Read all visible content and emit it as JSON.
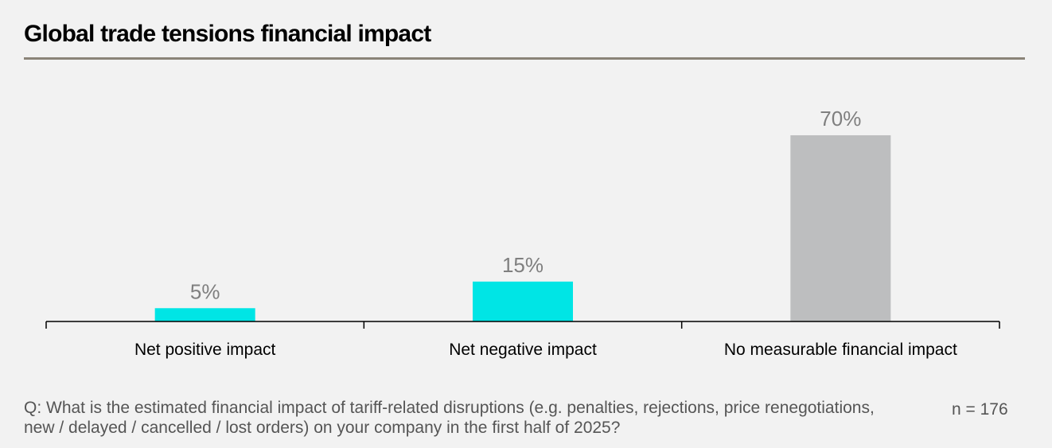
{
  "title": "Global trade tensions financial impact",
  "chart_data": {
    "type": "bar",
    "categories": [
      "Net positive impact",
      "Net negative impact",
      "No measurable financial impact"
    ],
    "values": [
      5,
      15,
      70
    ],
    "value_labels": [
      "5%",
      "15%",
      "70%"
    ],
    "colors": [
      "#00e5e5",
      "#00e5e5",
      "#bdbebf"
    ],
    "ylim": [
      0,
      70
    ],
    "grid": false,
    "legend": "none"
  },
  "footer": {
    "question": "Q: What is the estimated financial impact of tariff-related disruptions (e.g. penalties, rejections, price renegotiations, new / delayed / cancelled / lost orders) on your company in the first half of 2025?",
    "n": "n = 176"
  }
}
